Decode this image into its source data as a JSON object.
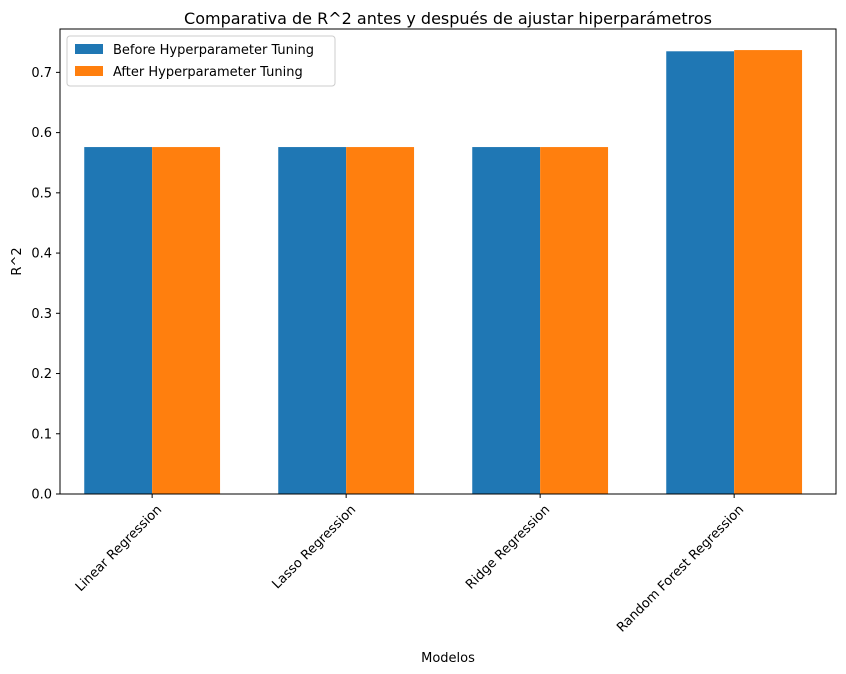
{
  "chart_data": {
    "type": "bar",
    "title": "Comparativa de R^2 antes y después de ajustar hiperparámetros",
    "xlabel": "Modelos",
    "ylabel": "R^2",
    "categories": [
      "Linear Regression",
      "Lasso Regression",
      "Ridge Regression",
      "Random Forest Regression"
    ],
    "series": [
      {
        "name": "Before Hyperparameter Tuning",
        "values": [
          0.576,
          0.576,
          0.576,
          0.735
        ],
        "color": "#1f77b4"
      },
      {
        "name": "After Hyperparameter Tuning",
        "values": [
          0.576,
          0.576,
          0.576,
          0.737
        ],
        "color": "#ff7f0e"
      }
    ],
    "ylim": [
      0,
      0.772
    ],
    "yticks": [
      0.0,
      0.1,
      0.2,
      0.3,
      0.4,
      0.5,
      0.6,
      0.7
    ],
    "ytick_labels": [
      "0.0",
      "0.1",
      "0.2",
      "0.3",
      "0.4",
      "0.5",
      "0.6",
      "0.7"
    ],
    "grid": false,
    "legend_position": "top-left"
  }
}
